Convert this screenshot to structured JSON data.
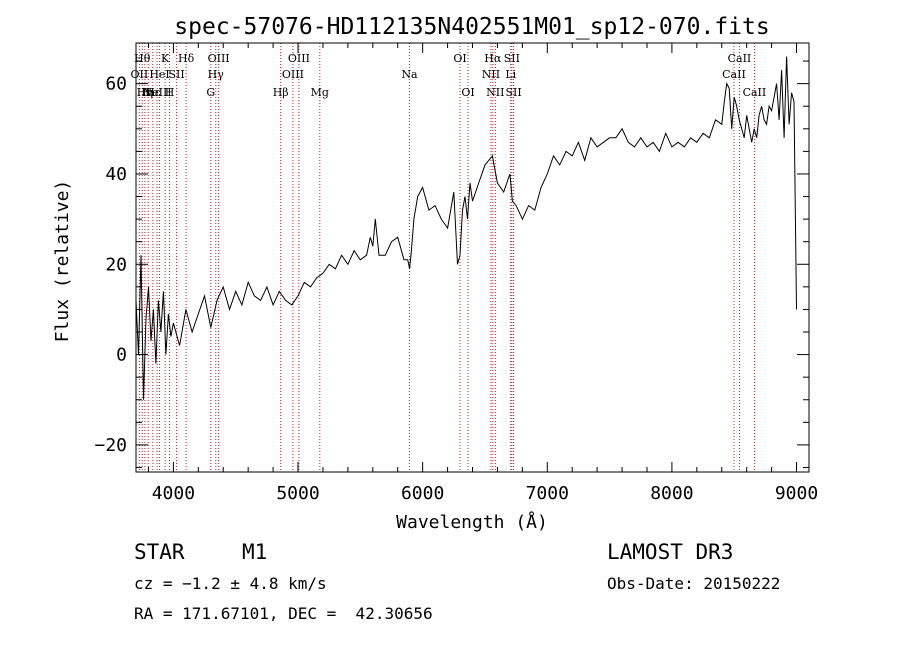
{
  "chart_data": {
    "type": "line",
    "title": "spec-57076-HD112135N402551M01_sp12-070.fits",
    "xlabel": "Wavelength (Å)",
    "ylabel": "Flux (relative)",
    "xlim": [
      3700,
      9100
    ],
    "ylim": [
      -26,
      69
    ],
    "xticks": [
      "4000",
      "5000",
      "6000",
      "7000",
      "8000",
      "9000"
    ],
    "yticks": [
      "−20",
      "0",
      "20",
      "40",
      "60"
    ],
    "grid": false,
    "series": [
      {
        "x": [
          3700,
          3720,
          3740,
          3760,
          3780,
          3800,
          3820,
          3840,
          3860,
          3880,
          3900,
          3920,
          3940,
          3960,
          3980,
          4000,
          4050,
          4100,
          4150,
          4200,
          4250,
          4300,
          4350,
          4400,
          4450,
          4500,
          4550,
          4600,
          4650,
          4700,
          4750,
          4800,
          4850,
          4900,
          4950,
          5000,
          5050,
          5100,
          5150,
          5200,
          5250,
          5300,
          5350,
          5400,
          5450,
          5500,
          5550,
          5580,
          5600,
          5620,
          5650,
          5700,
          5750,
          5800,
          5850,
          5880,
          5895,
          5910,
          5930,
          5960,
          6000,
          6050,
          6100,
          6150,
          6200,
          6250,
          6280,
          6300,
          6320,
          6340,
          6360,
          6380,
          6400,
          6450,
          6500,
          6530,
          6560,
          6600,
          6650,
          6700,
          6720,
          6750,
          6800,
          6850,
          6900,
          6950,
          7000,
          7050,
          7100,
          7150,
          7200,
          7250,
          7300,
          7350,
          7400,
          7450,
          7500,
          7550,
          7600,
          7650,
          7700,
          7750,
          7800,
          7850,
          7900,
          7950,
          8000,
          8050,
          8100,
          8150,
          8200,
          8250,
          8300,
          8350,
          8400,
          8420,
          8440,
          8460,
          8480,
          8500,
          8520,
          8540,
          8560,
          8580,
          8600,
          8620,
          8640,
          8660,
          8680,
          8700,
          8720,
          8740,
          8760,
          8780,
          8800,
          8820,
          8840,
          8860,
          8880,
          8900,
          8920,
          8940,
          8960,
          8980,
          9000
        ],
        "values": [
          12,
          0,
          22,
          -10,
          8,
          15,
          3,
          10,
          -2,
          12,
          5,
          14,
          0,
          9,
          4,
          7,
          2,
          10,
          5,
          9,
          13,
          6,
          12,
          15,
          10,
          14,
          11,
          16,
          13,
          12,
          15,
          11,
          14,
          12,
          11,
          13,
          16,
          15,
          17,
          18,
          20,
          19,
          22,
          20,
          23,
          21,
          22,
          26,
          24,
          30,
          22,
          22,
          25,
          26,
          21,
          21,
          19,
          23,
          30,
          35,
          37,
          32,
          33,
          30,
          28,
          36,
          20,
          22,
          32,
          35,
          30,
          38,
          34,
          38,
          42,
          43,
          44,
          38,
          36,
          40,
          34,
          33,
          30,
          33,
          32,
          37,
          40,
          44,
          42,
          45,
          44,
          47,
          43,
          48,
          46,
          47,
          48,
          48,
          50,
          47,
          46,
          48,
          46,
          47,
          45,
          49,
          46,
          47,
          46,
          48,
          47,
          49,
          48,
          52,
          51,
          56,
          60,
          59,
          50,
          57,
          55,
          52,
          50,
          48,
          53,
          50,
          47,
          50,
          48,
          53,
          55,
          52,
          51,
          55,
          54,
          57,
          60,
          52,
          63,
          48,
          66,
          51,
          58,
          56,
          10
        ]
      }
    ],
    "lines": [
      {
        "x": 3727,
        "label": "OII",
        "row": 2
      },
      {
        "x": 3750,
        "label": "Hθ",
        "row": 1
      },
      {
        "x": 3771,
        "label": "Hη",
        "row": 3
      },
      {
        "x": 3798,
        "label": "Hι",
        "row": 3
      },
      {
        "x": 3835,
        "label": "Hε",
        "row": 3
      },
      {
        "x": 3869,
        "label": "NeIII",
        "row": 3
      },
      {
        "x": 3889,
        "label": "HeI",
        "row": 2
      },
      {
        "x": 3934,
        "label": "K",
        "row": 1
      },
      {
        "x": 3969,
        "label": "H",
        "row": 3
      },
      {
        "x": 4026,
        "label": "SII",
        "row": 2
      },
      {
        "x": 4102,
        "label": "Hδ",
        "row": 1
      },
      {
        "x": 4300,
        "label": "G",
        "row": 3
      },
      {
        "x": 4340,
        "label": "Hγ",
        "row": 2
      },
      {
        "x": 4363,
        "label": "OIII",
        "row": 1
      },
      {
        "x": 4861,
        "label": "Hβ",
        "row": 3
      },
      {
        "x": 4959,
        "label": "OIII",
        "row": 2
      },
      {
        "x": 5007,
        "label": "OIII",
        "row": 1
      },
      {
        "x": 5175,
        "label": "Mg",
        "row": 3
      },
      {
        "x": 5894,
        "label": "Na",
        "row": 2
      },
      {
        "x": 6300,
        "label": "OI",
        "row": 1
      },
      {
        "x": 6364,
        "label": "OI",
        "row": 3
      },
      {
        "x": 6548,
        "label": "NII",
        "row": 2
      },
      {
        "x": 6563,
        "label": "Hα",
        "row": 1
      },
      {
        "x": 6583,
        "label": "NII",
        "row": 3
      },
      {
        "x": 6707,
        "label": "Li",
        "row": 2
      },
      {
        "x": 6716,
        "label": "SII",
        "row": 1
      },
      {
        "x": 6730,
        "label": "SII",
        "row": 3
      },
      {
        "x": 8498,
        "label": "CaII",
        "row": 2
      },
      {
        "x": 8542,
        "label": "CaII",
        "row": 1
      },
      {
        "x": 8662,
        "label": "CaII",
        "row": 3
      }
    ]
  },
  "info": {
    "class": "STAR",
    "subclass": "M1",
    "survey": "LAMOST DR3",
    "cz": "cz = −1.2 ± 4.8 km/s",
    "obs_date": "Obs-Date: 20150222",
    "radec": "RA = 171.67101, DEC =  42.30656"
  },
  "colors": {
    "spectrum": "#000000",
    "lines": "#b22222"
  }
}
